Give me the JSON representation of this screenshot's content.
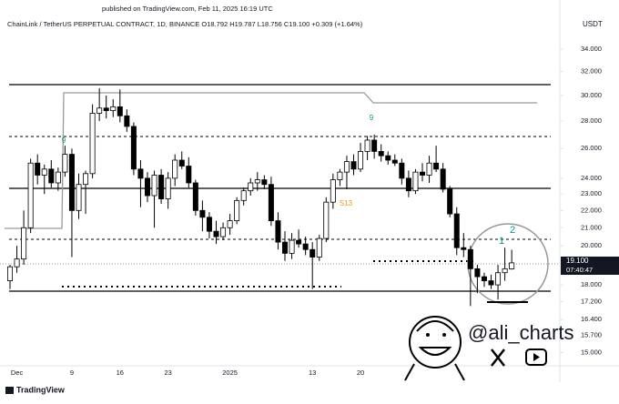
{
  "header": {
    "published": "published on TradingView.com, Feb 11, 2025 16:19 UTC",
    "symbol_info": "ChainLink / TetherUS PERPETUAL CONTRACT, 1D, BINANCE  O18.792  H19.787  L18.756  C19.100  +0.309 (+1.64%)",
    "currency": "USDT"
  },
  "footer": {
    "brand": "TradingView"
  },
  "watermark": {
    "handle": "@ali_charts"
  },
  "chart_data": {
    "type": "candlestick",
    "categories": [
      null,
      "Dec",
      null,
      null,
      null,
      null,
      null,
      null,
      null,
      "9",
      null,
      null,
      null,
      null,
      null,
      null,
      "16",
      null,
      null,
      null,
      null,
      null,
      null,
      "23",
      null,
      null,
      null,
      null,
      null,
      null,
      null,
      null,
      "2025",
      null,
      null,
      null,
      null,
      null,
      null,
      null,
      null,
      null,
      null,
      null,
      "13",
      null,
      null,
      null,
      null,
      null,
      null,
      "20",
      null,
      null,
      null,
      null,
      null,
      null,
      null,
      null,
      null,
      null,
      null,
      null,
      null,
      null,
      null,
      null,
      null,
      null,
      null,
      null,
      null,
      null
    ],
    "open": [
      18.2,
      18.9,
      19.3,
      21.0,
      25.0,
      24.2,
      24.6,
      23.7,
      24.4,
      25.6,
      22.0,
      23.6,
      24.3,
      28.6,
      29.0,
      28.8,
      29.1,
      28.4,
      27.6,
      24.6,
      24.0,
      22.9,
      24.2,
      22.7,
      24.0,
      25.2,
      24.8,
      23.7,
      22.0,
      21.6,
      20.8,
      20.5,
      21.0,
      21.4,
      22.6,
      23.2,
      23.7,
      23.9,
      23.6,
      21.4,
      20.2,
      19.6,
      20.3,
      20.1,
      19.8,
      19.4,
      20.4,
      22.5,
      23.9,
      24.4,
      25.1,
      24.6,
      25.8,
      26.6,
      25.8,
      25.5,
      25.2,
      25.0,
      24.0,
      23.2,
      24.4,
      24.2,
      25.0,
      24.6,
      23.3,
      21.8,
      19.9,
      19.8,
      18.8,
      18.4,
      18.2,
      18.0,
      18.6,
      18.792
    ],
    "high": [
      19.0,
      20.0,
      22.0,
      25.3,
      25.6,
      24.9,
      25.2,
      24.7,
      26.2,
      26.0,
      24.3,
      24.5,
      29.3,
      30.6,
      30.0,
      29.7,
      30.5,
      28.9,
      27.9,
      25.2,
      24.4,
      24.5,
      24.6,
      24.4,
      25.6,
      25.8,
      25.4,
      23.9,
      22.6,
      21.9,
      21.4,
      21.3,
      21.8,
      22.8,
      23.4,
      24.0,
      24.4,
      24.2,
      24.1,
      21.9,
      20.8,
      20.7,
      20.9,
      20.5,
      20.2,
      20.6,
      22.8,
      24.3,
      24.6,
      25.5,
      25.6,
      26.4,
      26.9,
      27.0,
      26.3,
      25.8,
      25.6,
      25.3,
      24.5,
      24.6,
      25.0,
      25.5,
      26.2,
      25.0,
      23.5,
      22.2,
      20.7,
      20.0,
      19.0,
      18.6,
      18.5,
      19.0,
      19.9,
      19.787
    ],
    "low": [
      17.8,
      18.6,
      19.0,
      20.7,
      23.6,
      23.0,
      23.4,
      23.2,
      24.1,
      19.4,
      21.5,
      21.8,
      24.0,
      28.0,
      28.2,
      28.3,
      27.9,
      27.2,
      24.2,
      22.2,
      22.5,
      21.0,
      22.4,
      22.1,
      23.5,
      24.6,
      23.4,
      21.7,
      20.8,
      20.4,
      20.1,
      20.3,
      20.6,
      21.2,
      22.3,
      22.9,
      23.2,
      23.3,
      21.1,
      19.8,
      19.2,
      19.3,
      19.9,
      19.5,
      17.8,
      19.2,
      20.2,
      22.1,
      23.5,
      23.3,
      24.2,
      24.4,
      25.2,
      25.3,
      25.1,
      24.9,
      24.8,
      23.6,
      22.8,
      23.0,
      23.8,
      23.7,
      24.4,
      23.1,
      21.6,
      19.5,
      19.4,
      17.0,
      17.6,
      17.9,
      17.8,
      17.3,
      18.2,
      18.756
    ],
    "close": [
      18.9,
      19.3,
      21.0,
      25.0,
      24.2,
      24.6,
      23.7,
      24.4,
      25.6,
      22.0,
      23.6,
      24.3,
      28.6,
      29.0,
      28.8,
      29.1,
      28.4,
      27.6,
      24.6,
      24.0,
      22.9,
      24.2,
      22.7,
      24.0,
      25.2,
      24.8,
      23.7,
      22.0,
      21.6,
      20.8,
      20.5,
      21.0,
      21.4,
      22.6,
      23.2,
      23.7,
      23.9,
      23.6,
      21.4,
      20.2,
      19.6,
      20.3,
      20.1,
      19.8,
      19.4,
      20.4,
      22.5,
      23.9,
      24.4,
      25.1,
      24.6,
      25.8,
      26.6,
      25.8,
      25.5,
      25.2,
      25.0,
      24.0,
      23.2,
      24.4,
      24.2,
      25.0,
      24.6,
      23.3,
      21.8,
      19.9,
      19.8,
      18.8,
      18.4,
      18.2,
      18.0,
      18.6,
      18.8,
      19.1
    ],
    "up_color": "#ffffff",
    "down_color": "#000000",
    "edge_color": "#000000",
    "log_scale": true,
    "ylim": [
      14.47,
      35.36
    ],
    "yticks": [
      {
        "value": 34,
        "label": "34.000"
      },
      {
        "value": 32,
        "label": "32.000"
      },
      {
        "value": 30,
        "label": "30.000"
      },
      {
        "value": 28,
        "label": "28.000"
      },
      {
        "value": 26,
        "label": "26.000"
      },
      {
        "value": 24,
        "label": "24.000"
      },
      {
        "value": 23,
        "label": "23.000"
      },
      {
        "value": 22,
        "label": "22.000"
      },
      {
        "value": 21,
        "label": "21.000"
      },
      {
        "value": 20,
        "label": "20.000"
      },
      {
        "value": 18,
        "label": "18.000"
      },
      {
        "value": 17.2,
        "label": "17.200"
      },
      {
        "value": 16.4,
        "label": "16.400"
      },
      {
        "value": 15.7,
        "label": "15.700"
      },
      {
        "value": 15,
        "label": "15.000"
      }
    ],
    "last_price_label": "19.100",
    "countdown": "07:40:47",
    "annotations": [
      "9",
      "9",
      "S13",
      "1",
      "2"
    ]
  }
}
